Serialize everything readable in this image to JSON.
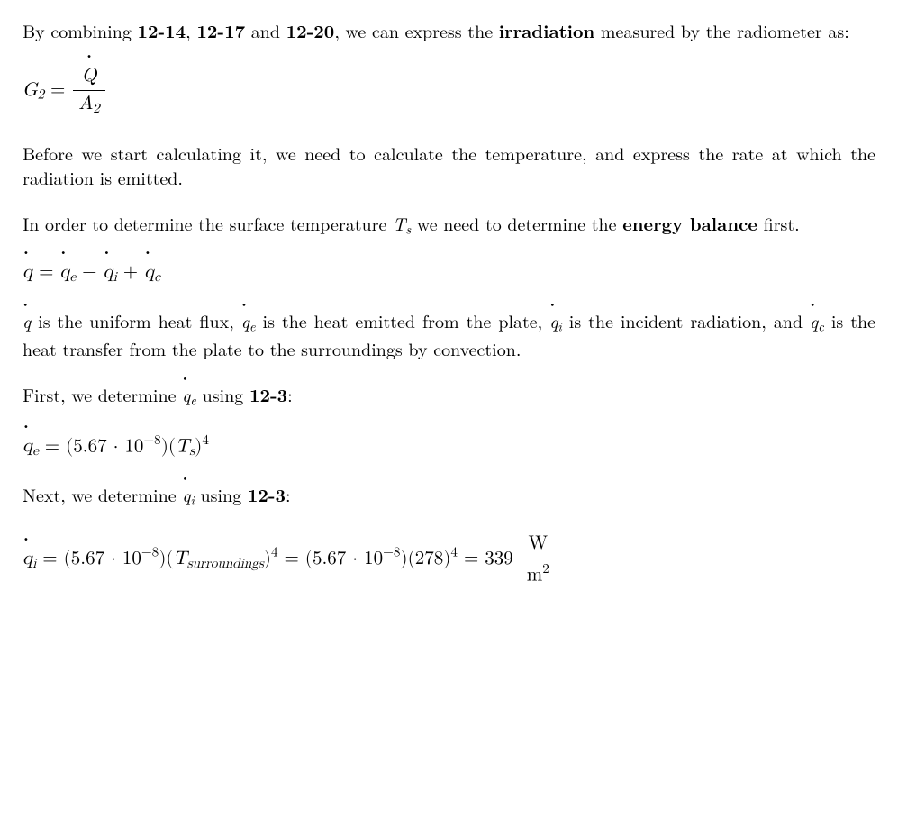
{
  "p1": {
    "pre": "By combining ",
    "ref1": "12-14",
    "sep1": ", ",
    "ref2": "12-17",
    "sep2": " and ",
    "ref3": "12-20",
    "mid": ", we can express the ",
    "bold": "irradiation",
    "post": " measured by the radiometer as:"
  },
  "eq1": {
    "lhs_base": "G",
    "lhs_sub": "2",
    "eq": " = ",
    "num_base": "Q",
    "den_base": "A",
    "den_sub": "2"
  },
  "p2": "Before we start calculating it, we need to calculate the temperature, and express the rate at which the radiation is emitted.",
  "p3": {
    "pre": "In order to determine the surface temperature ",
    "var_base": "T",
    "var_sub": "s",
    "mid": " we need to determine the ",
    "bold": "energy balance",
    "post": " first."
  },
  "eq2": {
    "q": "q",
    "eq": " = ",
    "qe_base": "q",
    "qe_sub": "e",
    "minus": " − ",
    "qi_base": "q",
    "qi_sub": "i",
    "plus": " + ",
    "qc_base": "q",
    "qc_sub": "c"
  },
  "p4": {
    "q": "q",
    "t1": " is the uniform heat flux, ",
    "qe_base": "q",
    "qe_sub": "e",
    "t2": " is the heat emitted from the plate, ",
    "qi_base": "q",
    "qi_sub": "i",
    "t3": " is the incident radiation, and ",
    "qc_base": "q",
    "qc_sub": "c",
    "t4": " is the heat transfer from the plate to the surroundings by convection."
  },
  "p5": {
    "pre": "First, we determine ",
    "qe_base": "q",
    "qe_sub": "e",
    "mid": " using ",
    "ref": "12-3",
    "post": ":"
  },
  "eq3": {
    "qe_base": "q",
    "qe_sub": "e",
    "eq": " = (5.67 · 10",
    "exp": "−8",
    "close": ")(",
    "T_base": "T",
    "T_sub": "s",
    "close2": ")",
    "pow": "4"
  },
  "p6": {
    "pre": "Next, we determine ",
    "qi_base": "q",
    "qi_sub": "i",
    "mid": " using ",
    "ref": "12-3",
    "post": ":"
  },
  "eq4": {
    "qi_base": "q",
    "qi_sub": "i",
    "eq": " = (5.67 · 10",
    "exp": "−8",
    "close": ")(",
    "T_base": "T",
    "T_sub": "surroundings",
    "close2": ")",
    "pow": "4",
    "eq2": " = (5.67 · 10",
    "exp2": "−8",
    "close3": ")(278)",
    "pow2": "4",
    "eq3": " = 339 ",
    "unit_num": "W",
    "unit_den_base": "m",
    "unit_den_sup": "2"
  }
}
